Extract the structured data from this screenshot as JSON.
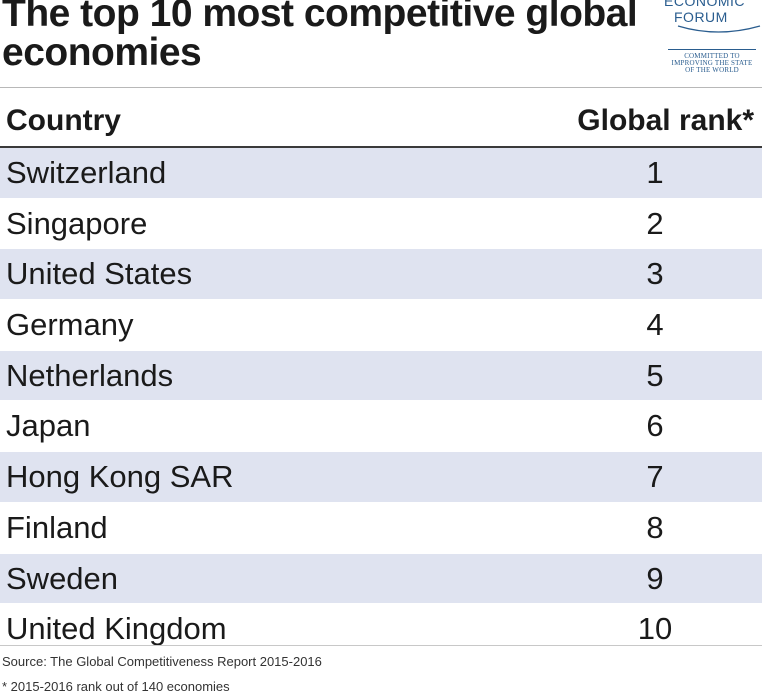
{
  "title": "The top 10 most competitive global economies",
  "logo": {
    "line1": "ECONOMIC",
    "line2": "FORUM",
    "tagline1": "COMMITTED TO",
    "tagline2": "IMPROVING THE STATE",
    "tagline3": "OF THE WORLD",
    "color": "#2a5d8f"
  },
  "table": {
    "headers": {
      "country": "Country",
      "rank": "Global rank*"
    },
    "rows": [
      {
        "country": "Switzerland",
        "rank": "1"
      },
      {
        "country": "Singapore",
        "rank": "2"
      },
      {
        "country": "United States",
        "rank": "3"
      },
      {
        "country": "Germany",
        "rank": "4"
      },
      {
        "country": "Netherlands",
        "rank": "5"
      },
      {
        "country": "Japan",
        "rank": "6"
      },
      {
        "country": "Hong Kong SAR",
        "rank": "7"
      },
      {
        "country": "Finland",
        "rank": "8"
      },
      {
        "country": "Sweden",
        "rank": "9"
      },
      {
        "country": "United Kingdom",
        "rank": "10"
      }
    ],
    "shade_color": "#dfe3f0"
  },
  "source": "Source: The Global Competitiveness Report 2015-2016",
  "footnote": "* 2015-2016 rank out of 140 economies"
}
